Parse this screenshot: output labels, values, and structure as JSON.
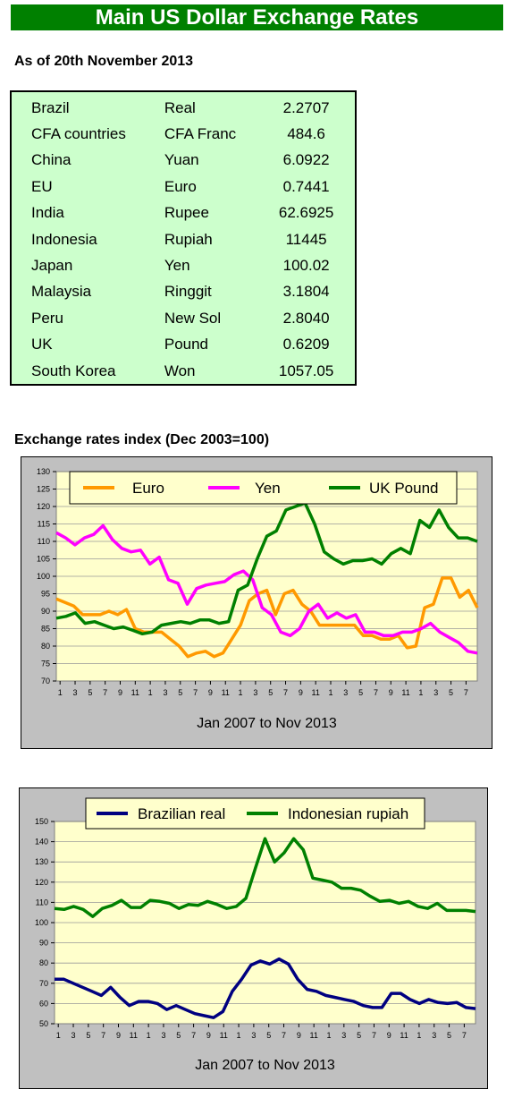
{
  "page": {
    "title": "Main US Dollar Exchange Rates",
    "as_of": "As of 20th November 2013",
    "index_title": "Exchange rates index (Dec 2003=100)"
  },
  "rates": [
    {
      "country": "Brazil",
      "currency": "Real",
      "rate": "2.2707"
    },
    {
      "country": "CFA countries",
      "currency": "CFA Franc",
      "rate": "484.6"
    },
    {
      "country": "China",
      "currency": "Yuan",
      "rate": "6.0922"
    },
    {
      "country": "EU",
      "currency": "Euro",
      "rate": "0.7441"
    },
    {
      "country": "India",
      "currency": "Rupee",
      "rate": "62.6925"
    },
    {
      "country": "Indonesia",
      "currency": "Rupiah",
      "rate": "11445"
    },
    {
      "country": "Japan",
      "currency": "Yen",
      "rate": "100.02"
    },
    {
      "country": "Malaysia",
      "currency": "Ringgit",
      "rate": "3.1804"
    },
    {
      "country": "Peru",
      "currency": "New Sol",
      "rate": "2.8040"
    },
    {
      "country": "UK",
      "currency": "Pound",
      "rate": "0.6209"
    },
    {
      "country": "South Korea",
      "currency": "Won",
      "rate": "1057.05"
    }
  ],
  "chart_data": [
    {
      "type": "line",
      "xlabel": "Jan 2007 to Nov 2013",
      "ylim": [
        70,
        130
      ],
      "yticks": [
        70,
        75,
        80,
        85,
        90,
        95,
        100,
        105,
        110,
        115,
        120,
        125,
        130
      ],
      "xtick_labels": [
        "1",
        "3",
        "5",
        "7",
        "9",
        "11",
        "1",
        "3",
        "5",
        "7",
        "9",
        "11",
        "1",
        "3",
        "5",
        "7",
        "9",
        "11",
        "1",
        "3",
        "5",
        "7",
        "9",
        "11",
        "1",
        "3",
        "5",
        "7"
      ],
      "grid": true,
      "legend": "top",
      "colors": {
        "plot_bg": "#ffffcc",
        "frame_bg": "#c0c0c0"
      },
      "series": [
        {
          "name": "Euro",
          "color": "#ff9900",
          "values": [
            93.5,
            92.5,
            91.5,
            89,
            89,
            89,
            90,
            89,
            90.5,
            85,
            84,
            84,
            84,
            82,
            80,
            77,
            78,
            78.5,
            77,
            78,
            82,
            86,
            93,
            95,
            96,
            89,
            95,
            96,
            92,
            90,
            86,
            86,
            86,
            86,
            86,
            83,
            83,
            82,
            82,
            83,
            79.5,
            80,
            91,
            92,
            99.5,
            99.5,
            94,
            96,
            91
          ]
        },
        {
          "name": "Yen",
          "color": "#ff00ff",
          "values": [
            112.5,
            111,
            109,
            111,
            112,
            114.5,
            110.5,
            108,
            107,
            107.5,
            103.5,
            105.5,
            99,
            98,
            92,
            96.5,
            97.5,
            98,
            98.5,
            100.5,
            101.5,
            99,
            91,
            89,
            84,
            83,
            85,
            90,
            92,
            88,
            89.5,
            88,
            89,
            84,
            84,
            83,
            83,
            84,
            84,
            85,
            86.5,
            84,
            82.5,
            81,
            78.5,
            78
          ]
        },
        {
          "name": "UK Pound",
          "color": "#008000",
          "values": [
            88,
            88.5,
            89.5,
            86.5,
            87,
            86,
            85,
            85.5,
            84.5,
            83.5,
            84,
            86,
            86.5,
            87,
            86.5,
            87.5,
            87.5,
            86.5,
            87,
            96,
            97.5,
            105,
            111.5,
            113,
            119,
            120,
            121,
            115,
            107,
            105,
            103.5,
            104.5,
            104.5,
            105,
            103.5,
            106.5,
            108,
            106.5,
            116,
            114,
            119,
            114,
            111,
            111,
            110
          ]
        }
      ]
    },
    {
      "type": "line",
      "xlabel": "Jan 2007 to Nov 2013",
      "ylim": [
        50,
        150
      ],
      "yticks": [
        50,
        60,
        70,
        80,
        90,
        100,
        110,
        120,
        130,
        140,
        150
      ],
      "xtick_labels": [
        "1",
        "3",
        "5",
        "7",
        "9",
        "11",
        "1",
        "3",
        "5",
        "7",
        "9",
        "11",
        "1",
        "3",
        "5",
        "7",
        "9",
        "11",
        "1",
        "3",
        "5",
        "7",
        "9",
        "11",
        "1",
        "3",
        "5",
        "7"
      ],
      "grid": true,
      "legend": "top",
      "colors": {
        "plot_bg": "#ffffcc",
        "frame_bg": "#c0c0c0"
      },
      "series": [
        {
          "name": "Brazilian real",
          "color": "#000080",
          "values": [
            72,
            72,
            70,
            68,
            66,
            64,
            68,
            63,
            59,
            61,
            61,
            60,
            57,
            59,
            57,
            55,
            54,
            53,
            56,
            66,
            72,
            79,
            81,
            79.5,
            82,
            79.5,
            72,
            67,
            66,
            64,
            63,
            62,
            61,
            59,
            58,
            58,
            65,
            65,
            62,
            60,
            62,
            60.5,
            60,
            60.5,
            58,
            57.5
          ]
        },
        {
          "name": "Indonesian rupiah",
          "color": "#008000",
          "values": [
            107,
            106.5,
            108,
            106.5,
            103,
            107,
            108.5,
            111,
            107.5,
            107.5,
            111,
            110.5,
            109.5,
            107,
            109,
            108.5,
            110.5,
            109,
            107,
            108,
            112,
            127,
            141.5,
            130,
            134.5,
            141.5,
            136,
            122,
            121,
            120,
            117,
            117,
            116,
            113,
            110.5,
            111,
            109.5,
            110.5,
            108,
            107,
            109.5,
            106,
            106,
            106,
            105.5
          ]
        }
      ]
    }
  ]
}
